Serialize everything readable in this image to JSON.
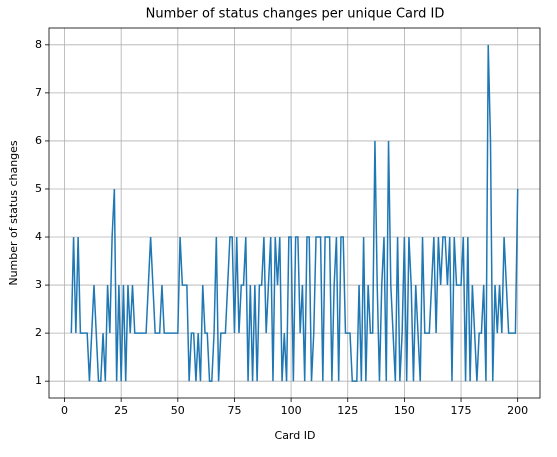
{
  "chart_data": {
    "type": "line",
    "title": "Number of status changes per unique Card ID",
    "xlabel": "Card ID",
    "ylabel": "Number of status changes",
    "x": [
      3,
      4,
      5,
      6,
      7,
      8,
      9,
      10,
      11,
      12,
      13,
      14,
      15,
      16,
      17,
      18,
      19,
      20,
      21,
      22,
      23,
      24,
      25,
      26,
      27,
      28,
      29,
      30,
      31,
      32,
      33,
      34,
      35,
      36,
      37,
      38,
      39,
      40,
      41,
      42,
      43,
      44,
      45,
      46,
      47,
      48,
      49,
      50,
      51,
      52,
      53,
      54,
      55,
      56,
      57,
      58,
      59,
      60,
      61,
      62,
      63,
      64,
      65,
      66,
      67,
      68,
      69,
      70,
      71,
      72,
      73,
      74,
      75,
      76,
      77,
      78,
      79,
      80,
      81,
      82,
      83,
      84,
      85,
      86,
      87,
      88,
      89,
      90,
      91,
      92,
      93,
      94,
      95,
      96,
      97,
      98,
      99,
      100,
      101,
      102,
      103,
      104,
      105,
      106,
      107,
      108,
      109,
      110,
      111,
      112,
      113,
      114,
      115,
      116,
      117,
      118,
      119,
      120,
      121,
      122,
      123,
      124,
      125,
      126,
      127,
      128,
      129,
      130,
      131,
      132,
      133,
      134,
      135,
      136,
      137,
      138,
      139,
      140,
      141,
      142,
      143,
      144,
      145,
      146,
      147,
      148,
      149,
      150,
      151,
      152,
      153,
      154,
      155,
      156,
      157,
      158,
      159,
      160,
      161,
      162,
      163,
      164,
      165,
      166,
      167,
      168,
      169,
      170,
      171,
      172,
      173,
      174,
      175,
      176,
      177,
      178,
      179,
      180,
      181,
      182,
      183,
      184,
      185,
      186,
      187,
      188,
      189,
      190,
      191,
      192,
      193,
      194,
      195,
      196,
      197,
      198,
      199,
      200
    ],
    "series": [
      {
        "color": "#1f77b4",
        "values": [
          2,
          4,
          2,
          4,
          2,
          2,
          2,
          2,
          1,
          2,
          3,
          2,
          1,
          1,
          2,
          1,
          3,
          2,
          4,
          5,
          1,
          3,
          1,
          3,
          1,
          3,
          2,
          3,
          2,
          2,
          2,
          2,
          2,
          2,
          3,
          4,
          3,
          2,
          2,
          2,
          3,
          2,
          2,
          2,
          2,
          2,
          2,
          2,
          4,
          3,
          3,
          3,
          1,
          2,
          2,
          1,
          2,
          1,
          3,
          2,
          2,
          1,
          1,
          2,
          4,
          1,
          2,
          2,
          2,
          3,
          4,
          4,
          2,
          4,
          2,
          3,
          3,
          4,
          1,
          3,
          1,
          3,
          1,
          3,
          3,
          4,
          2,
          3,
          4,
          1,
          4,
          3,
          4,
          1,
          2,
          1,
          4,
          4,
          1,
          4,
          4,
          2,
          3,
          1,
          4,
          4,
          1,
          2,
          4,
          4,
          4,
          1,
          4,
          4,
          4,
          1,
          3,
          4,
          1,
          4,
          4,
          2,
          2,
          2,
          1,
          1,
          1,
          3,
          1,
          4,
          1,
          3,
          2,
          2,
          6,
          3,
          1,
          3,
          4,
          1,
          6,
          3,
          2,
          1,
          4,
          1,
          2,
          4,
          1,
          4,
          3,
          1,
          3,
          2,
          1,
          4,
          2,
          2,
          2,
          3,
          4,
          2,
          4,
          3,
          4,
          4,
          3,
          4,
          1,
          4,
          3,
          3,
          3,
          4,
          1,
          4,
          1,
          3,
          2,
          1,
          2,
          2,
          3,
          1,
          8,
          6,
          1,
          3,
          2,
          3,
          2,
          4,
          3,
          2,
          2,
          2,
          2,
          5
        ]
      }
    ],
    "xlim": [
      -6.85,
      209.85
    ],
    "ylim": [
      0.65,
      8.35
    ],
    "xticks": [
      0,
      25,
      50,
      75,
      100,
      125,
      150,
      175,
      200
    ],
    "yticks": [
      1,
      2,
      3,
      4,
      5,
      6,
      7,
      8
    ],
    "grid": true
  }
}
